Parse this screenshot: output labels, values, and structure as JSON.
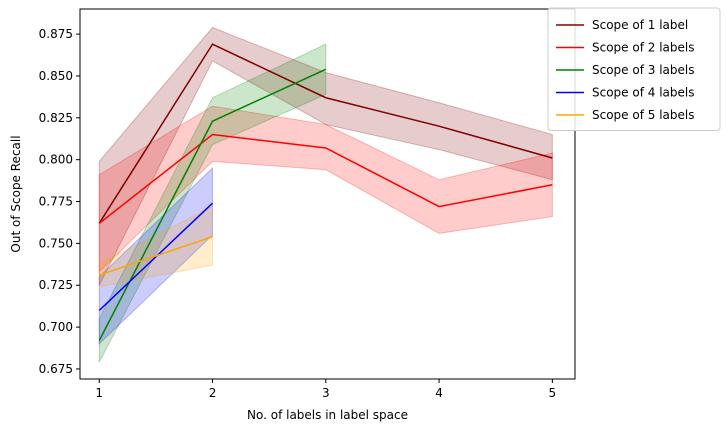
{
  "chart_data": {
    "type": "line",
    "title": "",
    "xlabel": "No. of labels in label space",
    "ylabel": "Out of Scope Recall",
    "xlim": [
      0.83,
      5.2
    ],
    "ylim": [
      0.669,
      0.89
    ],
    "xticks": [
      1,
      2,
      3,
      4,
      5
    ],
    "yticks": [
      0.675,
      0.7,
      0.725,
      0.75,
      0.775,
      0.8,
      0.825,
      0.85,
      0.875
    ],
    "ytick_labels": [
      "0.675",
      "0.700",
      "0.725",
      "0.750",
      "0.775",
      "0.800",
      "0.825",
      "0.850",
      "0.875"
    ],
    "grid": false,
    "legend_position": "upper-right-outside",
    "series": [
      {
        "name": "Scope of 1 label",
        "color": "#800000",
        "x": [
          1,
          2,
          3,
          4,
          5
        ],
        "values": [
          0.762,
          0.869,
          0.837,
          0.82,
          0.801
        ],
        "lower": [
          0.725,
          0.859,
          0.821,
          0.806,
          0.788
        ],
        "upper": [
          0.799,
          0.879,
          0.852,
          0.834,
          0.815
        ]
      },
      {
        "name": "Scope of 2 labels",
        "color": "#ff0000",
        "x": [
          1,
          2,
          3,
          4,
          5
        ],
        "values": [
          0.762,
          0.815,
          0.807,
          0.772,
          0.785
        ],
        "lower": [
          0.733,
          0.799,
          0.794,
          0.756,
          0.766
        ],
        "upper": [
          0.791,
          0.832,
          0.821,
          0.788,
          0.804
        ]
      },
      {
        "name": "Scope of 3 labels",
        "color": "#008000",
        "x": [
          1,
          2,
          3
        ],
        "values": [
          0.692,
          0.823,
          0.854
        ],
        "lower": [
          0.679,
          0.809,
          0.839
        ],
        "upper": [
          0.705,
          0.837,
          0.869
        ]
      },
      {
        "name": "Scope of 4 labels",
        "color": "#0000ff",
        "x": [
          1,
          2
        ],
        "values": [
          0.71,
          0.774
        ],
        "lower": [
          0.69,
          0.755
        ],
        "upper": [
          0.73,
          0.795
        ]
      },
      {
        "name": "Scope of 5 labels",
        "color": "#ffa500",
        "x": [
          1,
          2
        ],
        "values": [
          0.731,
          0.754
        ],
        "lower": [
          0.724,
          0.737
        ],
        "upper": [
          0.738,
          0.772
        ]
      }
    ]
  }
}
